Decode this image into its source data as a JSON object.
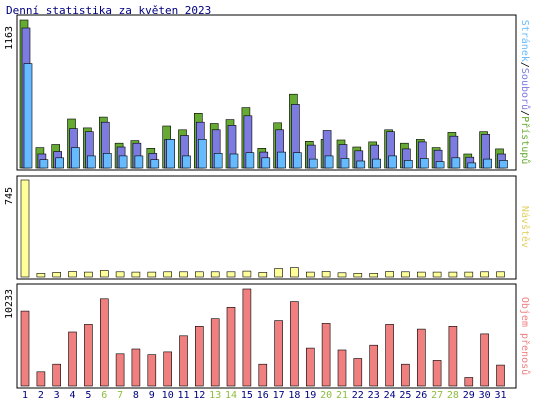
{
  "title": "Denní statistika za květen 2023",
  "colors": {
    "hits": "#66aa33",
    "files": "#7b7be0",
    "pages": "#66bbff",
    "visits": "#ffff99",
    "volume": "#f08080",
    "weekend": "#8fbc3f",
    "normal": "#000080",
    "frame": "#000000",
    "panel_edge": "#808080"
  },
  "chart_data": [
    {
      "type": "bar",
      "panel": "top",
      "ymax": 1163,
      "ymax_label": "1163",
      "legend": {
        "pages": "Stránek",
        "sep1": "/",
        "files": "Souborů",
        "sep2": "/",
        "hits": "Přístupů"
      },
      "categories": [
        "1",
        "2",
        "3",
        "4",
        "5",
        "6",
        "7",
        "8",
        "9",
        "10",
        "11",
        "12",
        "13",
        "14",
        "15",
        "16",
        "17",
        "18",
        "19",
        "20",
        "21",
        "22",
        "23",
        "24",
        "25",
        "26",
        "27",
        "28",
        "29",
        "30",
        "31"
      ],
      "series": [
        {
          "name": "Přístupů",
          "key": "hits",
          "values": [
            1163,
            160,
            185,
            385,
            315,
            400,
            195,
            215,
            155,
            330,
            300,
            430,
            350,
            380,
            475,
            155,
            355,
            580,
            210,
            225,
            220,
            165,
            205,
            300,
            195,
            225,
            160,
            280,
            110,
            285,
            150
          ]
        },
        {
          "name": "Souborů",
          "key": "files",
          "values": [
            1100,
            110,
            130,
            310,
            285,
            360,
            165,
            195,
            115,
            225,
            255,
            360,
            300,
            335,
            410,
            125,
            300,
            500,
            180,
            295,
            185,
            135,
            180,
            285,
            150,
            205,
            140,
            250,
            85,
            265,
            110
          ]
        },
        {
          "name": "Stránek",
          "key": "pages",
          "values": [
            820,
            65,
            80,
            160,
            95,
            115,
            95,
            95,
            65,
            225,
            95,
            225,
            115,
            110,
            120,
            80,
            125,
            120,
            70,
            95,
            75,
            55,
            70,
            95,
            60,
            75,
            50,
            80,
            40,
            70,
            60
          ]
        }
      ]
    },
    {
      "type": "bar",
      "panel": "middle",
      "ymax": 745,
      "ymax_label": "745",
      "legend": "Návštěv",
      "categories": [
        "1",
        "2",
        "3",
        "4",
        "5",
        "6",
        "7",
        "8",
        "9",
        "10",
        "11",
        "12",
        "13",
        "14",
        "15",
        "16",
        "17",
        "18",
        "19",
        "20",
        "21",
        "22",
        "23",
        "24",
        "25",
        "26",
        "27",
        "28",
        "29",
        "30",
        "31"
      ],
      "series": [
        {
          "name": "Návštěv",
          "key": "visits",
          "values": [
            745,
            28,
            35,
            42,
            38,
            50,
            40,
            38,
            38,
            40,
            40,
            40,
            40,
            40,
            45,
            35,
            65,
            72,
            38,
            42,
            32,
            28,
            28,
            42,
            40,
            38,
            38,
            38,
            38,
            40,
            40
          ]
        }
      ]
    },
    {
      "type": "bar",
      "panel": "bottom",
      "ymax": 10233,
      "ymax_label": "10233",
      "legend": "Objem přenosů",
      "categories": [
        "1",
        "2",
        "3",
        "4",
        "5",
        "6",
        "7",
        "8",
        "9",
        "10",
        "11",
        "12",
        "13",
        "14",
        "15",
        "16",
        "17",
        "18",
        "19",
        "20",
        "21",
        "22",
        "23",
        "24",
        "25",
        "26",
        "27",
        "28",
        "29",
        "30",
        "31"
      ],
      "weekend_days": [
        "6",
        "7",
        "13",
        "14",
        "20",
        "21",
        "27",
        "28"
      ],
      "series": [
        {
          "name": "Objem přenosů",
          "key": "volume",
          "values": [
            7900,
            1500,
            2300,
            5700,
            6500,
            9200,
            3400,
            3900,
            3300,
            3600,
            5300,
            6300,
            7100,
            8300,
            10233,
            2300,
            6900,
            8900,
            4000,
            6600,
            3800,
            2900,
            4300,
            6500,
            2300,
            6000,
            2700,
            6300,
            900,
            5500,
            2200
          ]
        }
      ]
    }
  ]
}
